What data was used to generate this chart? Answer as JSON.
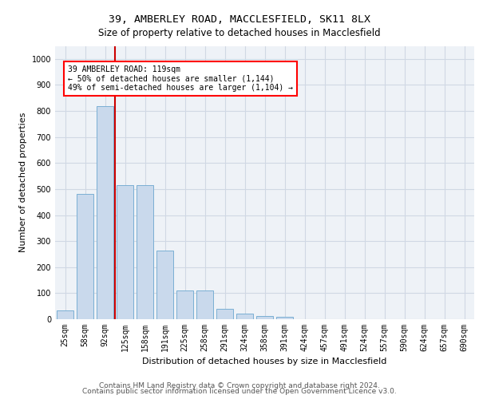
{
  "title_line1": "39, AMBERLEY ROAD, MACCLESFIELD, SK11 8LX",
  "title_line2": "Size of property relative to detached houses in Macclesfield",
  "xlabel": "Distribution of detached houses by size in Macclesfield",
  "ylabel": "Number of detached properties",
  "footer_line1": "Contains HM Land Registry data © Crown copyright and database right 2024.",
  "footer_line2": "Contains public sector information licensed under the Open Government Licence v3.0.",
  "annotation_line1": "39 AMBERLEY ROAD: 119sqm",
  "annotation_line2": "← 50% of detached houses are smaller (1,144)",
  "annotation_line3": "49% of semi-detached houses are larger (1,104) →",
  "bar_color": "#c9d9ec",
  "bar_edge_color": "#7aafd4",
  "grid_color": "#d0d8e4",
  "background_color": "#eef2f7",
  "vline_color": "#cc0000",
  "vline_position": 2.5,
  "ylim": [
    0,
    1050
  ],
  "yticks": [
    0,
    100,
    200,
    300,
    400,
    500,
    600,
    700,
    800,
    900,
    1000
  ],
  "categories": [
    "25sqm",
    "58sqm",
    "92sqm",
    "125sqm",
    "158sqm",
    "191sqm",
    "225sqm",
    "258sqm",
    "291sqm",
    "324sqm",
    "358sqm",
    "391sqm",
    "424sqm",
    "457sqm",
    "491sqm",
    "524sqm",
    "557sqm",
    "590sqm",
    "624sqm",
    "657sqm",
    "690sqm"
  ],
  "values": [
    33,
    480,
    820,
    515,
    515,
    265,
    110,
    110,
    40,
    22,
    13,
    10,
    0,
    0,
    0,
    0,
    0,
    0,
    0,
    0,
    0
  ],
  "title_fontsize": 9.5,
  "subtitle_fontsize": 8.5,
  "xlabel_fontsize": 8,
  "ylabel_fontsize": 8,
  "tick_fontsize": 7,
  "annotation_fontsize": 7,
  "footer_fontsize": 6.5
}
